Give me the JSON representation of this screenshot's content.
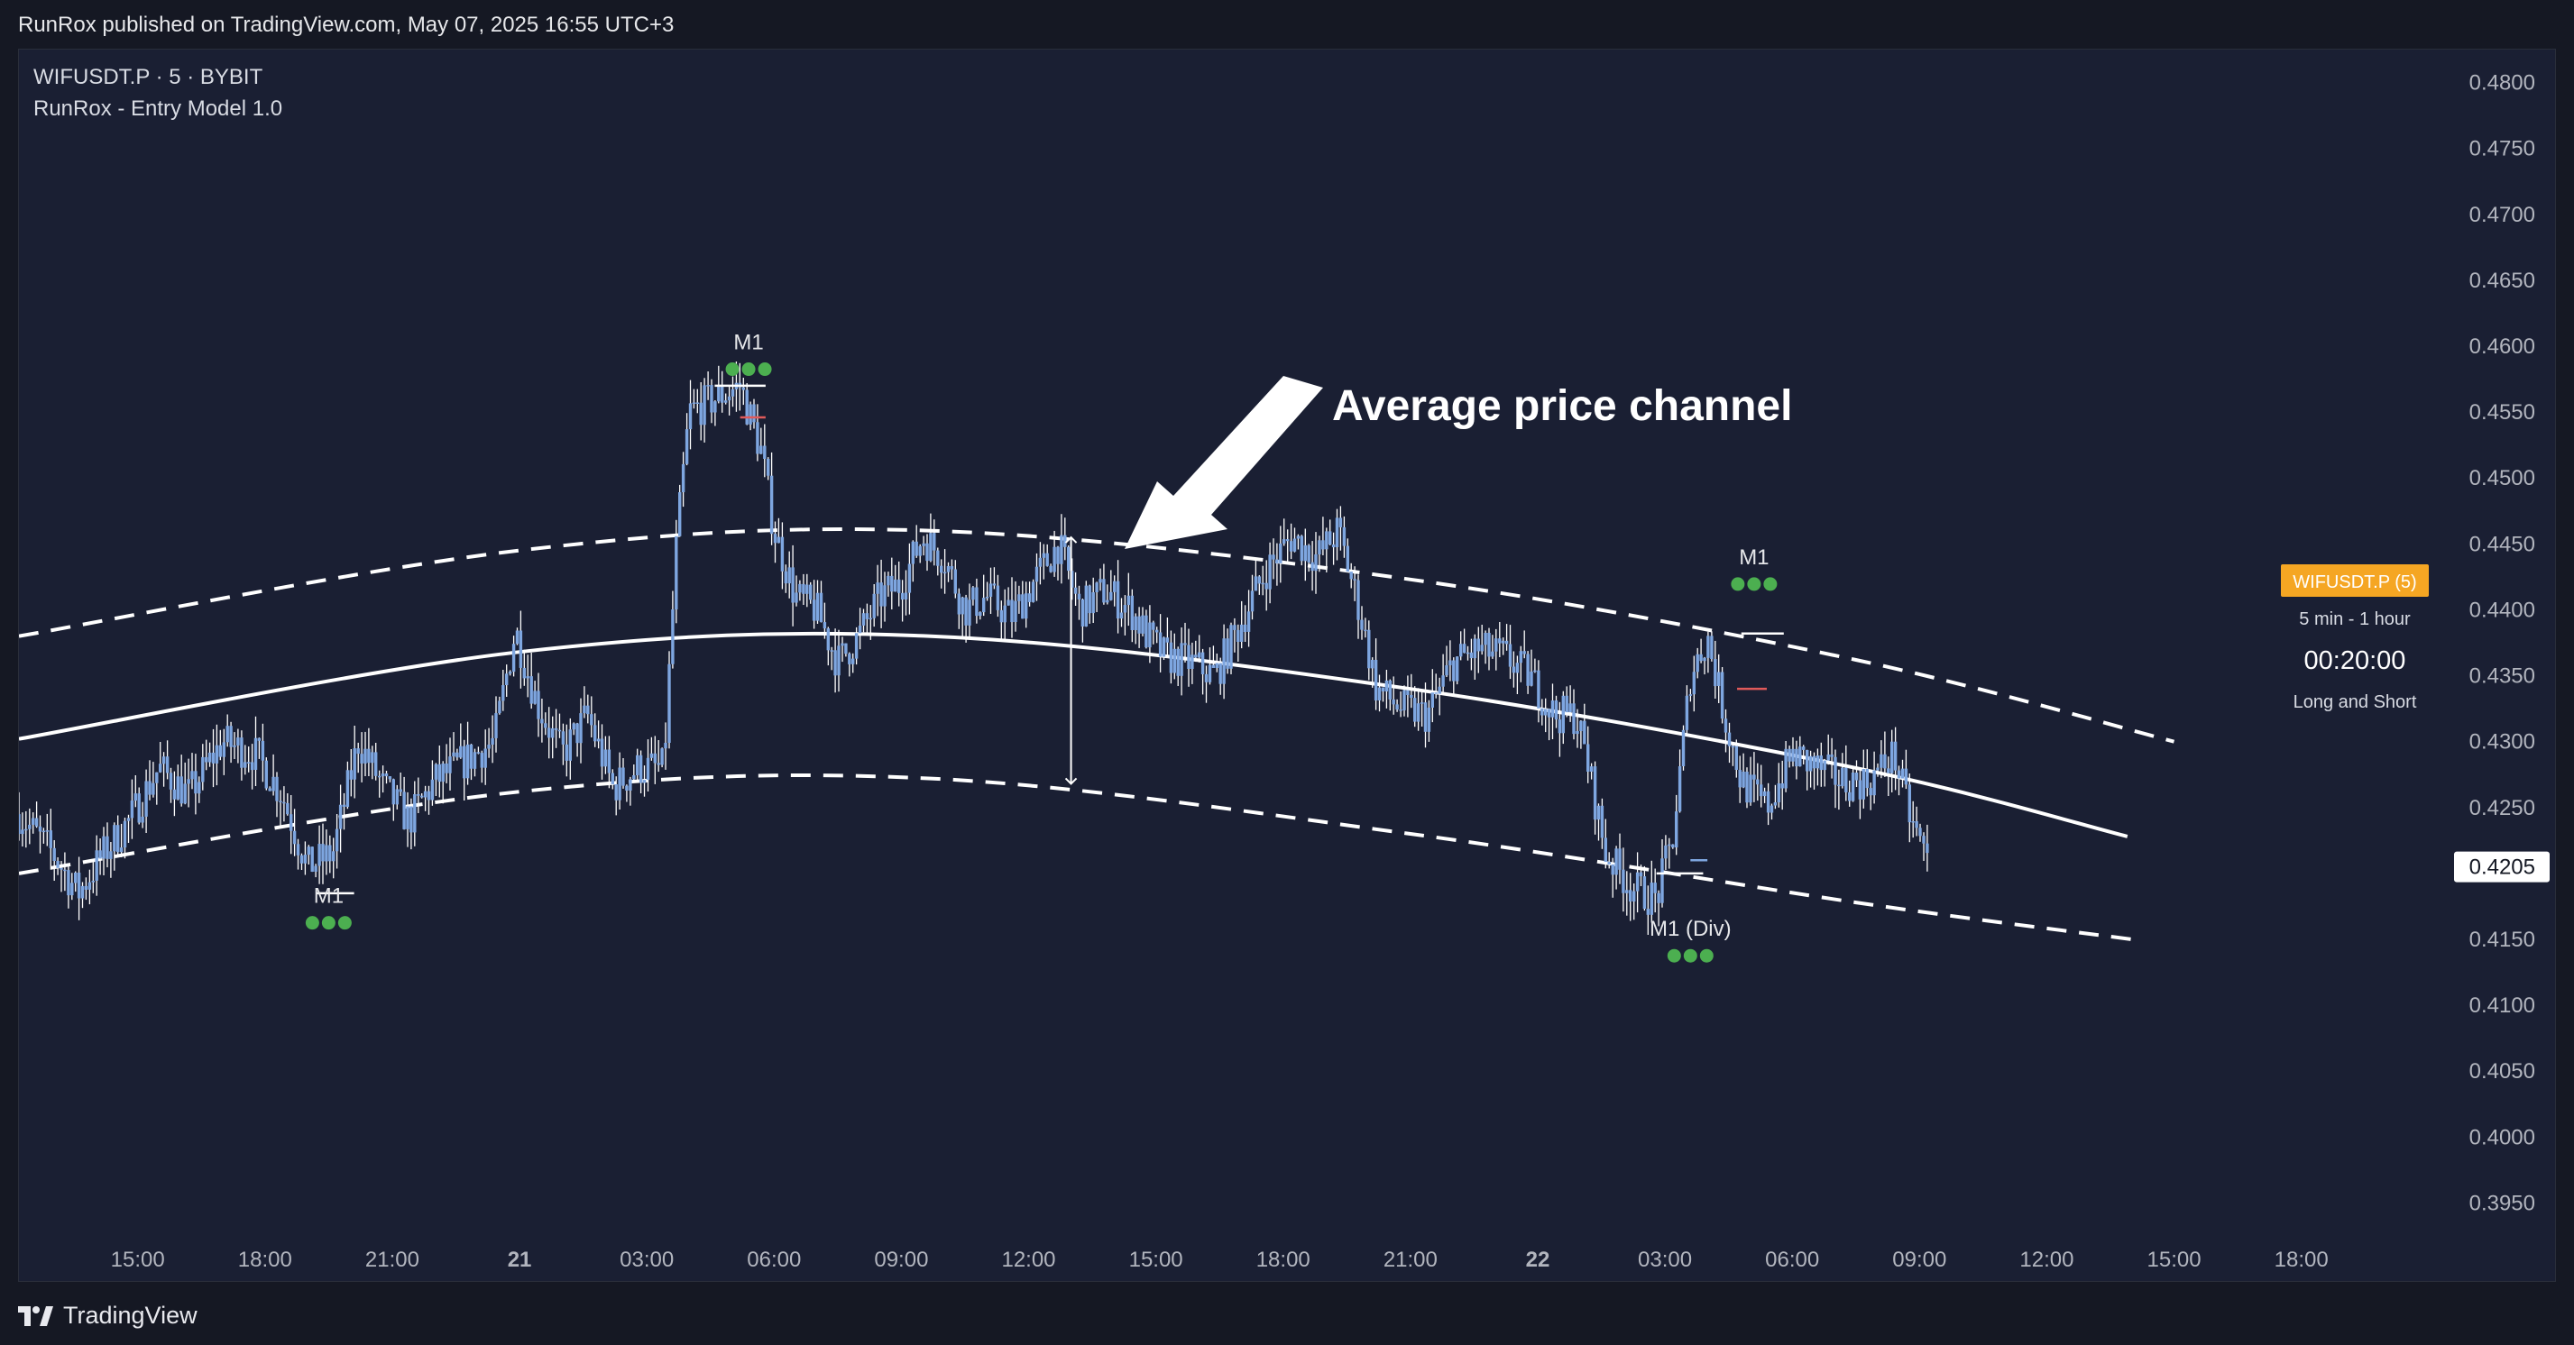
{
  "header": {
    "published_text": "RunRox published on TradingView.com, May 07, 2025 16:55 UTC+3"
  },
  "chart_header": {
    "symbol_line": "WIFUSDT.P · 5 · BYBIT",
    "indicator_line": "RunRox - Entry Model 1.0"
  },
  "annotation": {
    "title": "Average price channel"
  },
  "side_panel": {
    "badge": "WIFUSDT.P (5)",
    "timeframe": "5 min - 1 hour",
    "countdown": "00:20:00",
    "mode": "Long and Short"
  },
  "footer": {
    "brand": "TradingView"
  },
  "colors": {
    "background": "#1a1f33",
    "candle": "#7ea6e0",
    "wick": "#ffffff",
    "signal_dot": "#4caf50",
    "badge": "#f5a623",
    "stop_marker": "#e05a5a"
  },
  "chart_data": {
    "type": "candlestick",
    "instrument": "WIFUSDT.P",
    "exchange": "BYBIT",
    "y_ticks": [
      "0.4800",
      "0.4750",
      "0.4700",
      "0.4650",
      "0.4600",
      "0.4550",
      "0.4500",
      "0.4450",
      "0.4400",
      "0.4350",
      "0.4300",
      "0.4250",
      "0.4205",
      "0.4150",
      "0.4100",
      "0.4050",
      "0.4000",
      "0.3950"
    ],
    "ylim": [
      0.3925,
      0.4825
    ],
    "last_price": "0.4205",
    "x_ticks": [
      {
        "label": "15:00",
        "t": 15
      },
      {
        "label": "18:00",
        "t": 18
      },
      {
        "label": "21:00",
        "t": 21
      },
      {
        "label": "21",
        "t": 24,
        "bold": true
      },
      {
        "label": "03:00",
        "t": 27
      },
      {
        "label": "06:00",
        "t": 30
      },
      {
        "label": "09:00",
        "t": 33
      },
      {
        "label": "12:00",
        "t": 36
      },
      {
        "label": "15:00",
        "t": 39
      },
      {
        "label": "18:00",
        "t": 42
      },
      {
        "label": "21:00",
        "t": 45
      },
      {
        "label": "22",
        "t": 48,
        "bold": true
      },
      {
        "label": "03:00",
        "t": 51
      },
      {
        "label": "06:00",
        "t": 54
      },
      {
        "label": "09:00",
        "t": 57
      },
      {
        "label": "12:00",
        "t": 60
      },
      {
        "label": "15:00",
        "t": 63
      },
      {
        "label": "18:00",
        "t": 66
      }
    ],
    "xlim_hours": [
      12.2,
      69.6
    ],
    "price_path": [
      [
        12.2,
        0.4245
      ],
      [
        13.0,
        0.4215
      ],
      [
        13.6,
        0.4185
      ],
      [
        14.2,
        0.4215
      ],
      [
        14.8,
        0.424
      ],
      [
        15.5,
        0.428
      ],
      [
        16.2,
        0.426
      ],
      [
        17.0,
        0.43
      ],
      [
        17.8,
        0.429
      ],
      [
        18.4,
        0.426
      ],
      [
        19.0,
        0.4205
      ],
      [
        19.6,
        0.4215
      ],
      [
        20.2,
        0.43
      ],
      [
        20.8,
        0.4265
      ],
      [
        21.4,
        0.424
      ],
      [
        22.0,
        0.427
      ],
      [
        22.7,
        0.4285
      ],
      [
        23.4,
        0.43
      ],
      [
        23.9,
        0.4385
      ],
      [
        24.4,
        0.433
      ],
      [
        25.0,
        0.429
      ],
      [
        25.6,
        0.432
      ],
      [
        26.2,
        0.4265
      ],
      [
        26.8,
        0.428
      ],
      [
        27.4,
        0.428
      ],
      [
        27.7,
        0.445
      ],
      [
        28.0,
        0.455
      ],
      [
        28.6,
        0.456
      ],
      [
        29.2,
        0.457
      ],
      [
        29.7,
        0.452
      ],
      [
        30.0,
        0.446
      ],
      [
        30.5,
        0.441
      ],
      [
        31.0,
        0.44
      ],
      [
        31.5,
        0.436
      ],
      [
        32.0,
        0.438
      ],
      [
        32.5,
        0.441
      ],
      [
        33.0,
        0.442
      ],
      [
        33.5,
        0.4455
      ],
      [
        34.0,
        0.444
      ],
      [
        34.5,
        0.44
      ],
      [
        35.0,
        0.441
      ],
      [
        35.6,
        0.4395
      ],
      [
        36.2,
        0.4425
      ],
      [
        36.7,
        0.445
      ],
      [
        37.2,
        0.44
      ],
      [
        37.8,
        0.4415
      ],
      [
        38.4,
        0.44
      ],
      [
        38.8,
        0.438
      ],
      [
        39.2,
        0.4365
      ],
      [
        39.8,
        0.436
      ],
      [
        40.4,
        0.435
      ],
      [
        41.0,
        0.439
      ],
      [
        41.6,
        0.443
      ],
      [
        42.2,
        0.4455
      ],
      [
        42.8,
        0.444
      ],
      [
        43.3,
        0.446
      ],
      [
        43.8,
        0.44
      ],
      [
        44.2,
        0.434
      ],
      [
        44.8,
        0.4325
      ],
      [
        45.4,
        0.432
      ],
      [
        46.0,
        0.436
      ],
      [
        46.6,
        0.437
      ],
      [
        47.2,
        0.4365
      ],
      [
        47.8,
        0.435
      ],
      [
        48.4,
        0.432
      ],
      [
        48.9,
        0.432
      ],
      [
        49.2,
        0.428
      ],
      [
        49.6,
        0.4215
      ],
      [
        50.2,
        0.419
      ],
      [
        50.8,
        0.418
      ],
      [
        51.2,
        0.423
      ],
      [
        51.6,
        0.435
      ],
      [
        52.0,
        0.438
      ],
      [
        52.4,
        0.432
      ],
      [
        52.8,
        0.427
      ],
      [
        53.4,
        0.425
      ],
      [
        54.0,
        0.429
      ],
      [
        54.6,
        0.428
      ],
      [
        55.2,
        0.427
      ],
      [
        55.8,
        0.427
      ],
      [
        56.4,
        0.429
      ],
      [
        56.8,
        0.424
      ],
      [
        57.2,
        0.421
      ]
    ],
    "channel": {
      "middle": [
        [
          12.2,
          0.4302
        ],
        [
          24.0,
          0.4368
        ],
        [
          33.7,
          0.438
        ],
        [
          45.0,
          0.434
        ],
        [
          55.5,
          0.428
        ],
        [
          61.9,
          0.4228
        ]
      ],
      "upper": [
        [
          12.2,
          0.438
        ],
        [
          24.0,
          0.4445
        ],
        [
          33.7,
          0.446
        ],
        [
          45.0,
          0.4423
        ],
        [
          55.5,
          0.4362
        ],
        [
          63.0,
          0.43
        ]
      ],
      "lower": [
        [
          12.2,
          0.42
        ],
        [
          24.0,
          0.4262
        ],
        [
          33.7,
          0.4272
        ],
        [
          45.0,
          0.423
        ],
        [
          55.5,
          0.4178
        ],
        [
          62.0,
          0.415
        ]
      ]
    },
    "signals": [
      {
        "label": "M1",
        "side": "top",
        "t": 29.4,
        "price": 0.4588
      },
      {
        "label": "M1",
        "side": "bottom",
        "t": 19.5,
        "price": 0.4168
      },
      {
        "label": "M1",
        "side": "top",
        "t": 53.1,
        "price": 0.4425
      },
      {
        "label": "M1 (Div)",
        "side": "bottom",
        "t": 51.6,
        "price": 0.4143
      }
    ],
    "levels": [
      {
        "t1": 28.6,
        "t2": 29.8,
        "price": 0.457,
        "color": "#ffffff"
      },
      {
        "t1": 29.2,
        "t2": 29.8,
        "price": 0.4546,
        "color": "#e05a5a"
      },
      {
        "t1": 19.2,
        "t2": 20.1,
        "price": 0.4185,
        "color": "#ffffff"
      },
      {
        "t1": 50.8,
        "t2": 51.9,
        "price": 0.42,
        "color": "#ffffff"
      },
      {
        "t1": 51.6,
        "t2": 52.0,
        "price": 0.421,
        "color": "#7ea6e0"
      },
      {
        "t1": 52.8,
        "t2": 53.8,
        "price": 0.4382,
        "color": "#ffffff"
      },
      {
        "t1": 52.7,
        "t2": 53.4,
        "price": 0.434,
        "color": "#e05a5a"
      }
    ],
    "width_arrow": {
      "t": 37.0,
      "top": 0.4455,
      "bottom": 0.4268
    },
    "grid": false
  }
}
